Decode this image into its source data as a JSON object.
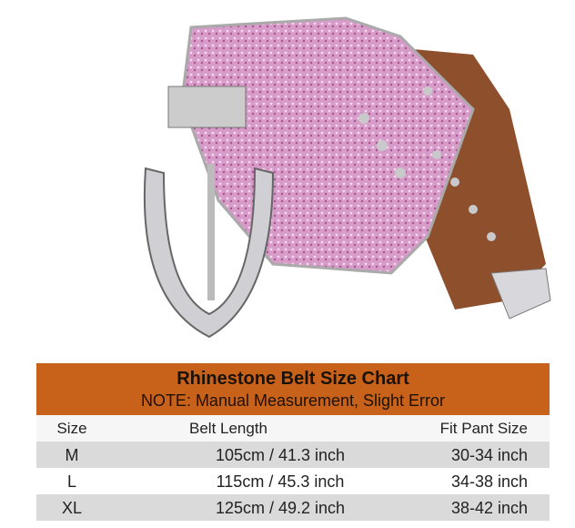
{
  "colors": {
    "header_band": "#c8611a",
    "row_alt": "#dadada",
    "belt_pink": "#d79bc9",
    "leather": "#9a5a34"
  },
  "chart": {
    "title": "Rhinestone Belt Size Chart",
    "note": "NOTE: Manual Measurement, Slight Error",
    "columns": [
      "Size",
      "Belt Length",
      "Fit Pant Size"
    ],
    "rows": [
      {
        "size": "M",
        "length": "105cm / 41.3 inch",
        "pant": "30-34 inch"
      },
      {
        "size": "L",
        "length": "115cm / 45.3 inch",
        "pant": "34-38 inch"
      },
      {
        "size": "XL",
        "length": "125cm / 49.2 inch",
        "pant": "38-42 inch"
      }
    ]
  }
}
